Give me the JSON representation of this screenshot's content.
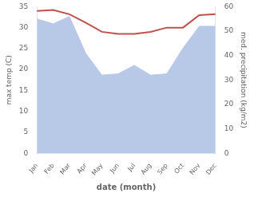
{
  "chart_data": {
    "type": "line",
    "categories": [
      "Jan",
      "Feb",
      "Mar",
      "Apr",
      "May",
      "Jun",
      "Jul",
      "Aug",
      "Sep",
      "Oct",
      "Nov",
      "Dec"
    ],
    "series": [
      {
        "type": "area",
        "axis": "y2",
        "color": "#b8c9e8",
        "values": [
          55.0,
          53.0,
          56.0,
          41.0,
          32.0,
          32.5,
          36.0,
          32.0,
          32.5,
          43.0,
          52.0,
          52.0
        ]
      },
      {
        "type": "line",
        "color": "#c0504d",
        "values": [
          34.0,
          34.2,
          33.2,
          31.2,
          29.0,
          28.5,
          28.5,
          29.0,
          30.0,
          30.0,
          33.0,
          33.2
        ]
      }
    ],
    "xlabel": "date (month)",
    "ylabel": "max temp (C)",
    "y2label": "med. precipitation (kg/m2)",
    "ylim": [
      0,
      35
    ],
    "yticks": [
      0,
      5,
      10,
      15,
      20,
      25,
      30,
      35
    ],
    "y2lim": [
      0,
      60
    ],
    "y2ticks": [
      0,
      10,
      20,
      30,
      40,
      50,
      60
    ],
    "grid": false
  }
}
